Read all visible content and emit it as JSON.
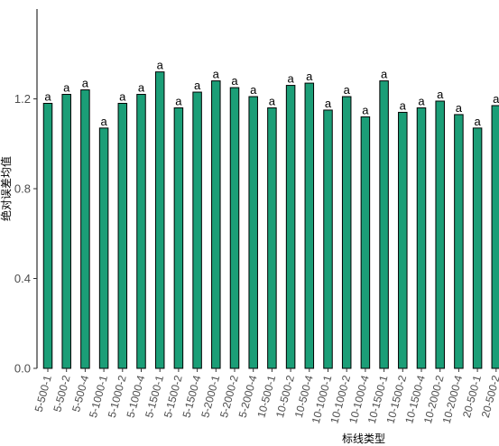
{
  "chart_data": {
    "type": "bar",
    "xlabel": "标线类型",
    "ylabel": "绝对误差均值",
    "ylim": [
      0,
      1.6
    ],
    "yticks": [
      0.0,
      0.4,
      0.8,
      1.2
    ],
    "ytick_labels": [
      "0.0",
      "0.4",
      "0.8",
      "1.2"
    ],
    "grid": false,
    "legend": "none",
    "bar_color": "#1b9e77",
    "bar_edge_color": "#000000",
    "categories": [
      "5-500-1",
      "5-500-2",
      "5-500-4",
      "5-1000-1",
      "5-1000-2",
      "5-1000-4",
      "5-1500-1",
      "5-1500-2",
      "5-1500-4",
      "5-2000-1",
      "5-2000-2",
      "5-2000-4",
      "10-500-1",
      "10-500-2",
      "10-500-4",
      "10-1000-1",
      "10-1000-2",
      "10-1000-4",
      "10-1500-1",
      "10-1500-2",
      "10-1500-4",
      "10-2000-2",
      "10-2000-4",
      "20-500-1",
      "20-500-2"
    ],
    "values": [
      1.18,
      1.22,
      1.24,
      1.07,
      1.18,
      1.22,
      1.32,
      1.16,
      1.23,
      1.28,
      1.25,
      1.21,
      1.16,
      1.26,
      1.27,
      1.15,
      1.21,
      1.12,
      1.28,
      1.14,
      1.16,
      1.19,
      1.13,
      1.07,
      1.17
    ],
    "data_labels": [
      "a",
      "a",
      "a",
      "a",
      "a",
      "a",
      "a",
      "a",
      "a",
      "a",
      "a",
      "a",
      "a",
      "a",
      "a",
      "a",
      "a",
      "a",
      "a",
      "a",
      "a",
      "a",
      "a",
      "a",
      "a"
    ]
  }
}
